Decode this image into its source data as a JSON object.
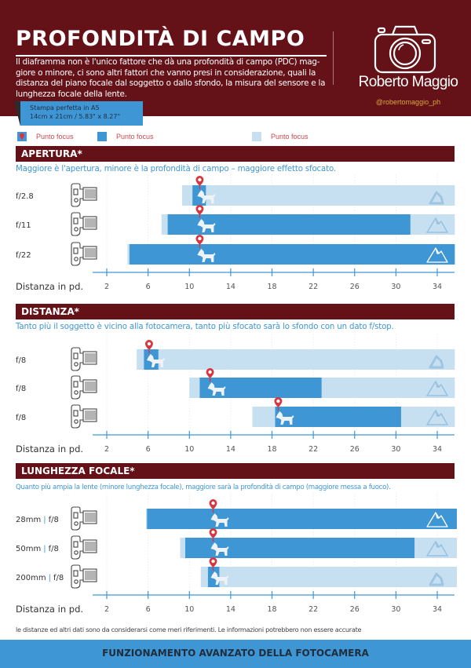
{
  "header": {
    "title": "PROFONDITÀ DI CAMPO",
    "intro_lines": [
      "Il diaframma non è l'unico fattore che dà una profondità di campo (PDC) mag-",
      "giore o minore, ci sono altri fattori che vanno presi in considerazione, quali la",
      "distanza del piano focale dal soggetto o dallo sfondo, la misura del sensore e la",
      "lunghezza focale della lente."
    ],
    "brand": "Roberto Maggio",
    "handle": "@robertomaggio_ph",
    "print_tag": {
      "line1": "Stampa perfetta in A5",
      "line2": "14cm x 21cm / 5.83\" x 8.27\""
    }
  },
  "colors": {
    "brand_red": "#641218",
    "dark_blue": "#3f96d5",
    "light_blue": "#c6e0f2",
    "pin_red": "#d9353d",
    "gold": "#d9a63a"
  },
  "legend": [
    {
      "label": "Punto focus",
      "icon": "map-pin-icon"
    },
    {
      "label": "Punto focus",
      "icon": "dark-blue-swatch"
    },
    {
      "label": "Punto focus",
      "icon": "light-blue-swatch"
    }
  ],
  "chart_data": [
    {
      "type": "bar",
      "title": "APERTURA*",
      "subtitle": "Maggiore è l'apertura, minore è la profondità di campo – maggiore effetto sfocato.",
      "xlabel": "Distanza in pd.",
      "xticks": [
        2,
        6,
        10,
        14,
        18,
        22,
        26,
        30,
        34
      ],
      "xlim": [
        0.6,
        35.8
      ],
      "grid": true,
      "rows": [
        {
          "label": "f/2.8",
          "light": [
            9.3,
            35.7
          ],
          "dark": [
            10.3,
            11.6
          ],
          "focus": 11.0,
          "background": "blurred"
        },
        {
          "label": "f/11",
          "light": [
            7.3,
            35.7
          ],
          "dark": [
            7.9,
            31.4
          ],
          "focus": 11.0,
          "background": "semi-blurred"
        },
        {
          "label": "f/22",
          "light": [
            4.0,
            35.7
          ],
          "dark": [
            4.2,
            35.7
          ],
          "focus": 11.0,
          "background": "sharp"
        }
      ]
    },
    {
      "type": "bar",
      "title": "DISTANZA*",
      "subtitle": "Tanto più il soggetto è vicino alla fotocamera, tanto più sfocato sarà lo sfondo con un dato f/stop.",
      "xlabel": "Distanza in pd.",
      "xticks": [
        2,
        6,
        10,
        14,
        18,
        22,
        26,
        30,
        34
      ],
      "xlim": [
        0.6,
        35.8
      ],
      "grid": true,
      "rows": [
        {
          "label": "f/8",
          "light": [
            4.9,
            35.7
          ],
          "dark": [
            5.6,
            7.0
          ],
          "focus": 6.1,
          "background": "blurred"
        },
        {
          "label": "f/8",
          "light": [
            10.0,
            35.7
          ],
          "dark": [
            11.0,
            22.8
          ],
          "focus": 12.0,
          "background": "semi-blurred"
        },
        {
          "label": "f/8",
          "light": [
            16.1,
            35.7
          ],
          "dark": [
            18.3,
            30.5
          ],
          "focus": 18.6,
          "background": "semi-blurred"
        }
      ]
    },
    {
      "type": "bar",
      "title": "LUNGHEZZA FOCALE*",
      "subtitle": "Quanto più ampia la lente (minore lunghezza focale), maggiore sarà la profondità di campo (maggiore  messa a fuoco).",
      "xlabel": "Distanza in pd.",
      "xticks": [
        2,
        6,
        10,
        14,
        18,
        22,
        26,
        30,
        34
      ],
      "xlim": [
        0.6,
        35.8
      ],
      "grid": true,
      "rows": [
        {
          "label": "28mm",
          "fstop": "f/8",
          "light": [
            5.8,
            35.9
          ],
          "dark": [
            5.9,
            35.9
          ],
          "focus": 12.3,
          "background": "sharp"
        },
        {
          "label": "50mm",
          "fstop": "f/8",
          "light": [
            9.1,
            35.9
          ],
          "dark": [
            9.6,
            31.8
          ],
          "focus": 12.3,
          "background": "semi-blurred"
        },
        {
          "label": "200mm",
          "fstop": "f/8",
          "light": [
            11.1,
            35.9
          ],
          "dark": [
            11.8,
            12.9
          ],
          "focus": 12.3,
          "background": "blurred"
        }
      ]
    }
  ],
  "footnote": "le distanze ed altri dati sono da considerarsi come meri riferimenti. Le informazioni potrebbero non essere accurate",
  "footer": "FUNZIONAMENTO AVANZATO DELLA FOTOCAMERA"
}
